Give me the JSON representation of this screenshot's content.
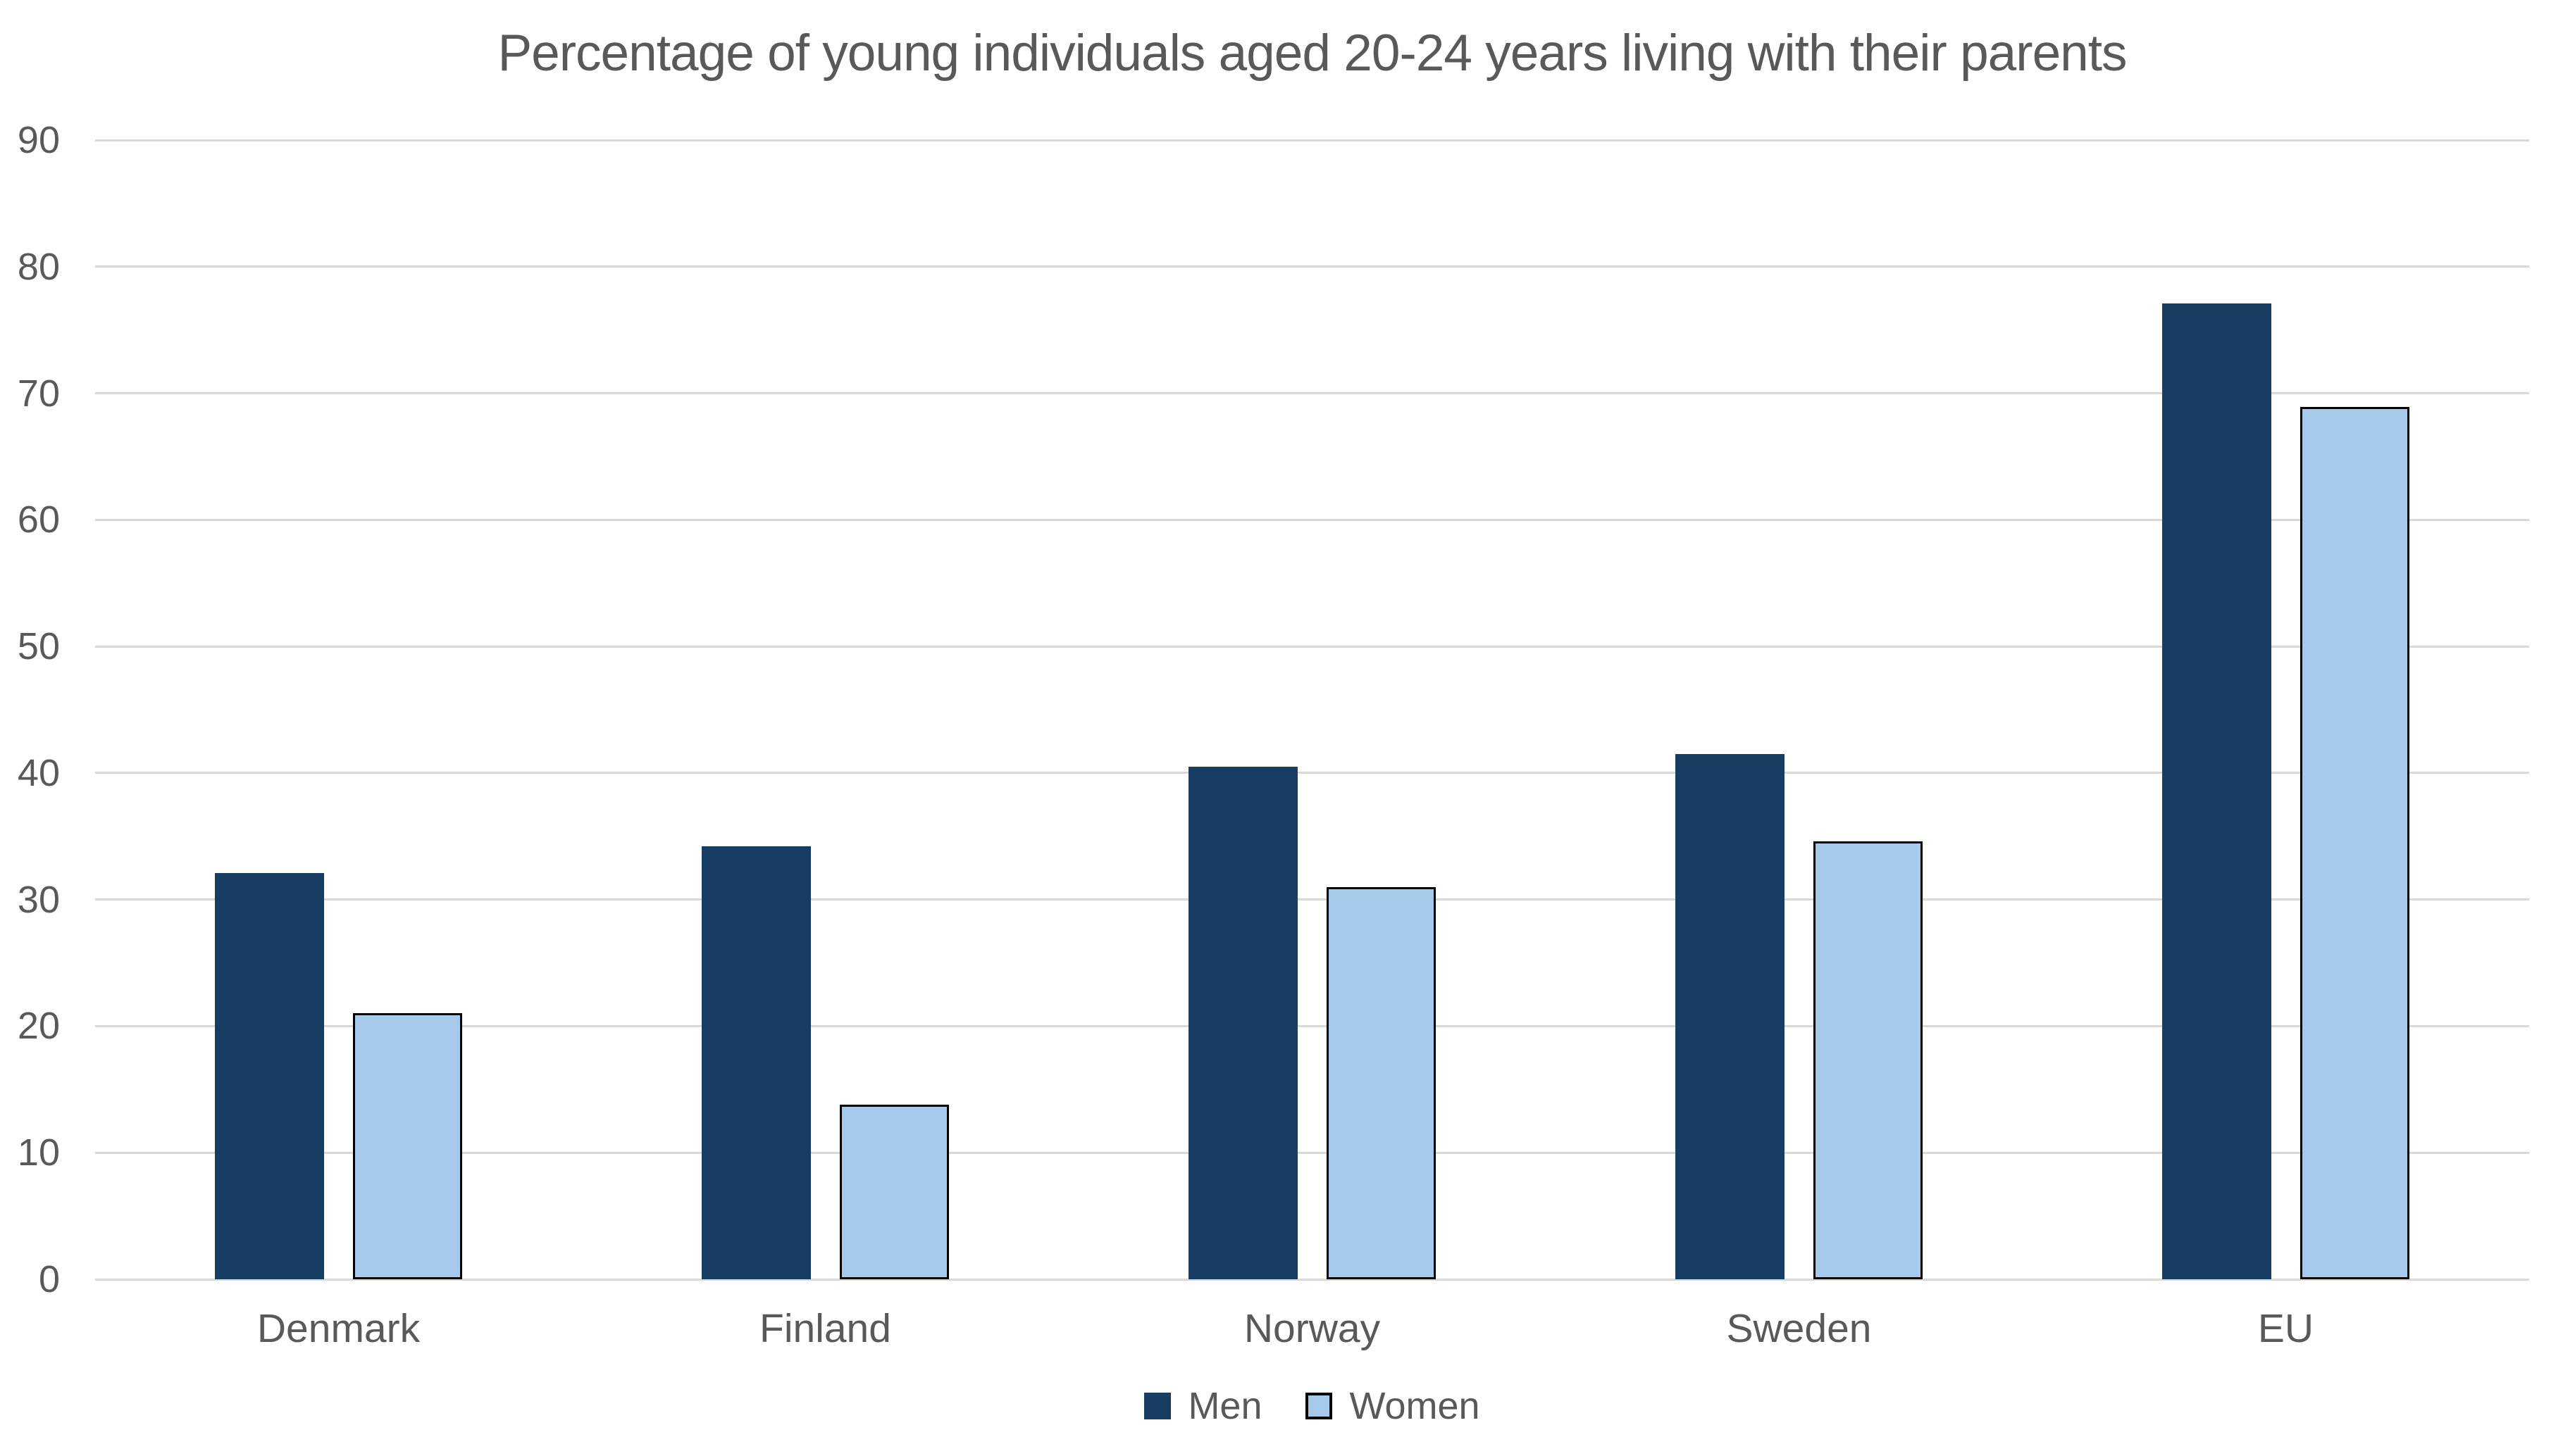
{
  "chart_data": {
    "type": "bar",
    "title": "Percentage of young individuals aged 20-24 years living with their parents",
    "categories": [
      "Denmark",
      "Finland",
      "Norway",
      "Sweden",
      "EU"
    ],
    "series": [
      {
        "name": "Men",
        "values": [
          32.1,
          34.2,
          40.5,
          41.5,
          77.1
        ],
        "fill": "#173D63",
        "border_color": null
      },
      {
        "name": "Women",
        "values": [
          21.0,
          13.8,
          31.0,
          34.6,
          68.9
        ],
        "fill": "#A6C9EC",
        "border_color": "#000000"
      }
    ],
    "ylim": [
      0,
      90
    ],
    "yticks": [
      0,
      10,
      20,
      30,
      40,
      50,
      60,
      70,
      80,
      90
    ],
    "grid": true,
    "legend_position": "bottom",
    "colors": {
      "gridline": "#D9D9D9",
      "text": "#595959",
      "background": "#FFFFFF"
    }
  }
}
